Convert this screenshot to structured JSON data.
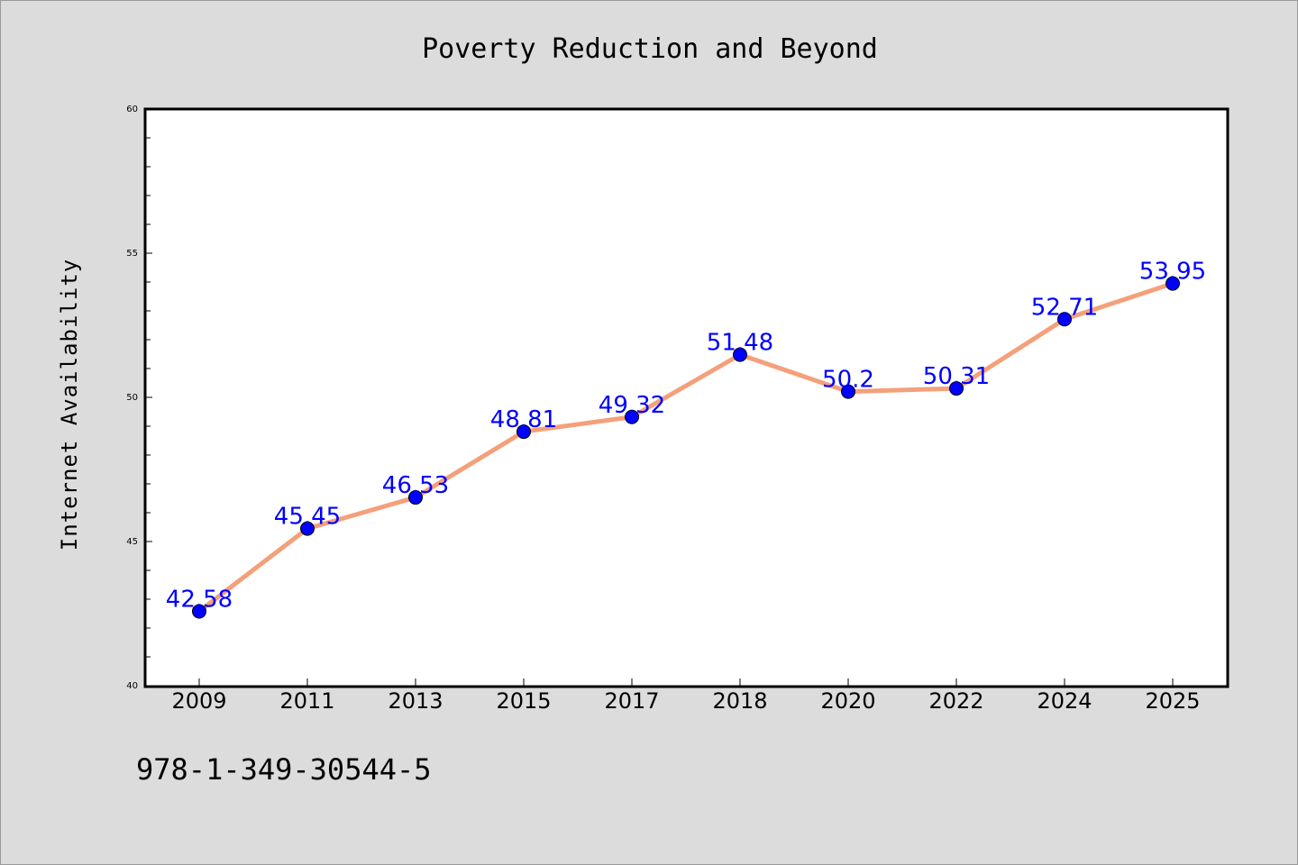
{
  "chart_data": {
    "type": "line",
    "title": "Poverty Reduction and Beyond",
    "xlabel": "",
    "ylabel": "Internet Availability",
    "categories": [
      "2009",
      "2011",
      "2013",
      "2015",
      "2017",
      "2018",
      "2020",
      "2022",
      "2024",
      "2025"
    ],
    "series": [
      {
        "values": [
          42.58,
          45.45,
          46.53,
          48.81,
          49.32,
          51.48,
          50.2,
          50.31,
          52.71,
          53.95
        ],
        "data_labels": [
          "42.58",
          "45.45",
          "46.53",
          "48.81",
          "49.32",
          "51.48",
          "50.2",
          "50.31",
          "52.71",
          "53.95"
        ]
      }
    ],
    "ylim": [
      40,
      60
    ],
    "yticks": [
      "40",
      "45",
      "50",
      "55",
      "60"
    ],
    "grid": false,
    "legend": "none",
    "colors": {
      "line": "#f4a07a",
      "marker": "#0000ff",
      "data_label": "#0000ff",
      "plot_background": "#ffffff",
      "figure_background": "#dcdcdc"
    }
  },
  "footer": {
    "isbn": "978-1-349-30544-5"
  }
}
